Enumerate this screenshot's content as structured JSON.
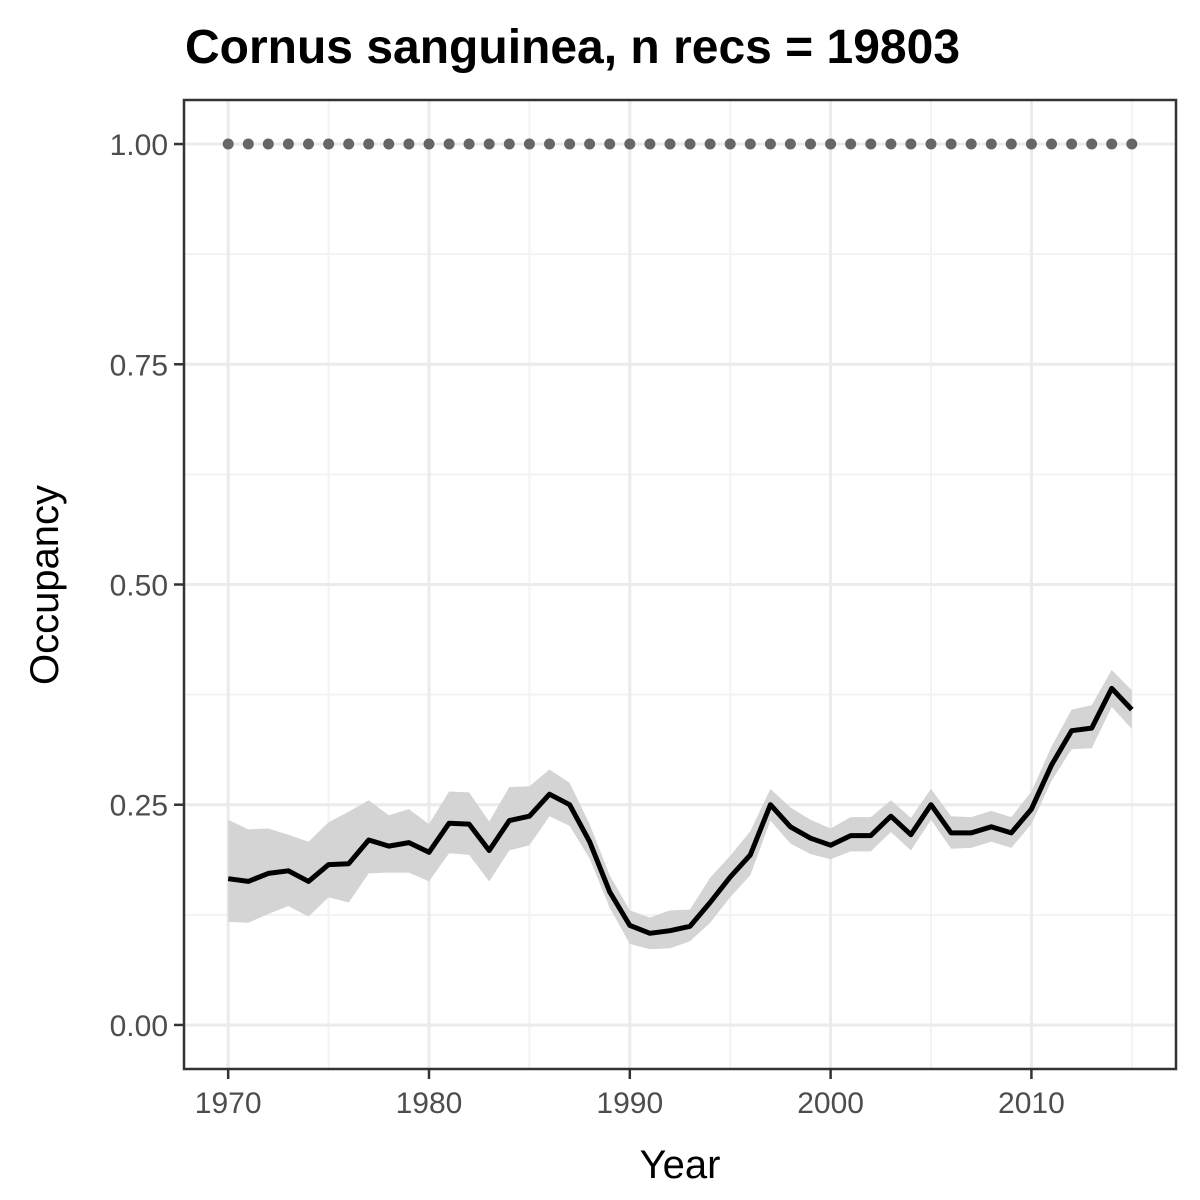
{
  "chart_data": {
    "type": "line",
    "title": "Cornus sanguinea, n recs = 19803",
    "xlabel": "Year",
    "ylabel": "Occupancy",
    "xlim": [
      1967.8,
      1017.2
    ],
    "ylim": [
      -0.05,
      1.05
    ],
    "x_ticks": [
      1970,
      1980,
      1990,
      2000,
      2010
    ],
    "y_ticks": [
      0.0,
      0.25,
      0.5,
      0.75,
      1.0
    ],
    "y_tick_labels": [
      "0.00",
      "0.25",
      "0.50",
      "0.75",
      "1.00"
    ],
    "x_tick_labels": [
      "1970",
      "1980",
      "1990",
      "2000",
      "2010"
    ],
    "grid": true,
    "legend": "none",
    "series": [
      {
        "kind": "line",
        "color": "#000000",
        "x": [
          1970,
          1971,
          1972,
          1973,
          1974,
          1975,
          1976,
          1977,
          1978,
          1979,
          1980,
          1981,
          1982,
          1983,
          1984,
          1985,
          1986,
          1987,
          1988,
          1989,
          1990,
          1991,
          1992,
          1993,
          1994,
          1995,
          1996,
          1997,
          1998,
          1999,
          2000,
          2001,
          2002,
          2003,
          2004,
          2005,
          2006,
          2007,
          2008,
          2009,
          2010,
          2011,
          2012,
          2013,
          2014,
          2015
        ],
        "values": [
          0.166,
          0.163,
          0.172,
          0.175,
          0.163,
          0.182,
          0.183,
          0.21,
          0.203,
          0.207,
          0.196,
          0.229,
          0.228,
          0.198,
          0.232,
          0.237,
          0.262,
          0.25,
          0.208,
          0.151,
          0.113,
          0.104,
          0.107,
          0.112,
          0.139,
          0.168,
          0.193,
          0.25,
          0.225,
          0.212,
          0.204,
          0.215,
          0.215,
          0.237,
          0.216,
          0.25,
          0.218,
          0.218,
          0.225,
          0.218,
          0.245,
          0.295,
          0.334,
          0.337,
          0.382,
          0.358
        ]
      },
      {
        "kind": "ribbon",
        "color": "#d4d4d4",
        "x": [
          1970,
          1971,
          1972,
          1973,
          1974,
          1975,
          1976,
          1977,
          1978,
          1979,
          1980,
          1981,
          1982,
          1983,
          1984,
          1985,
          1986,
          1987,
          1988,
          1989,
          1990,
          1991,
          1992,
          1993,
          1994,
          1995,
          1996,
          1997,
          1998,
          1999,
          2000,
          2001,
          2002,
          2003,
          2004,
          2005,
          2006,
          2007,
          2008,
          2009,
          2010,
          2011,
          2012,
          2013,
          2014,
          2015
        ],
        "upper": [
          0.233,
          0.222,
          0.223,
          0.216,
          0.208,
          0.23,
          0.242,
          0.255,
          0.238,
          0.245,
          0.228,
          0.265,
          0.264,
          0.231,
          0.27,
          0.271,
          0.29,
          0.275,
          0.228,
          0.17,
          0.13,
          0.122,
          0.13,
          0.131,
          0.167,
          0.192,
          0.22,
          0.268,
          0.247,
          0.233,
          0.223,
          0.236,
          0.236,
          0.255,
          0.235,
          0.268,
          0.237,
          0.236,
          0.243,
          0.236,
          0.265,
          0.316,
          0.358,
          0.363,
          0.403,
          0.38
        ],
        "lower": [
          0.117,
          0.116,
          0.126,
          0.135,
          0.123,
          0.145,
          0.139,
          0.172,
          0.173,
          0.173,
          0.163,
          0.195,
          0.193,
          0.163,
          0.198,
          0.204,
          0.237,
          0.226,
          0.189,
          0.133,
          0.092,
          0.086,
          0.087,
          0.095,
          0.116,
          0.145,
          0.17,
          0.232,
          0.206,
          0.194,
          0.188,
          0.197,
          0.197,
          0.219,
          0.198,
          0.233,
          0.2,
          0.201,
          0.208,
          0.201,
          0.228,
          0.277,
          0.313,
          0.314,
          0.361,
          0.336
        ]
      },
      {
        "kind": "points",
        "color": "#666666",
        "x": [
          1970,
          1971,
          1972,
          1973,
          1974,
          1975,
          1976,
          1977,
          1978,
          1979,
          1980,
          1981,
          1982,
          1983,
          1984,
          1985,
          1986,
          1987,
          1988,
          1989,
          1990,
          1991,
          1992,
          1993,
          1994,
          1995,
          1996,
          1997,
          1998,
          1999,
          2000,
          2001,
          2002,
          2003,
          2004,
          2005,
          2006,
          2007,
          2008,
          2009,
          2010,
          2011,
          2012,
          2013,
          2014,
          2015
        ],
        "values": [
          1,
          1,
          1,
          1,
          1,
          1,
          1,
          1,
          1,
          1,
          1,
          1,
          1,
          1,
          1,
          1,
          1,
          1,
          1,
          1,
          1,
          1,
          1,
          1,
          1,
          1,
          1,
          1,
          1,
          1,
          1,
          1,
          1,
          1,
          1,
          1,
          1,
          1,
          1,
          1,
          1,
          1,
          1,
          1,
          1,
          1
        ]
      }
    ]
  }
}
